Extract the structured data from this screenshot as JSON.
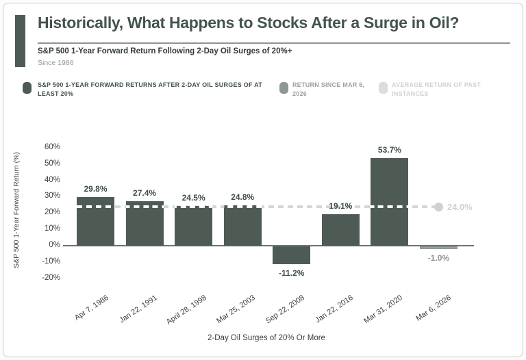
{
  "header": {
    "title": "Historically, What Happens to Stocks After a Surge in Oil?",
    "subtitle": "S&P 500 1-Year Forward Return Following 2-Day Oil Surges of 20%+",
    "since_label": "Since 1986"
  },
  "legend": {
    "items": [
      {
        "label": "S&P 500 1-YEAR FORWARD RETURNS AFTER 2-DAY OIL SURGES OF AT LEAST 20%",
        "swatch_color": "#4d5b54",
        "text_color": "#44544c"
      },
      {
        "label": "RETURN SINCE MAR 6, 2026",
        "swatch_color": "#8e9893",
        "text_color": "#9aa19d"
      },
      {
        "label": "AVERAGE RETURN OF PAST INSTANCES",
        "swatch_color": "#d9dedb",
        "text_color": "#cdd3d0"
      }
    ]
  },
  "chart_data": {
    "type": "bar",
    "title": "S&P 500 1-Year Forward Return Following 2-Day Oil Surges of 20%+",
    "categories": [
      "Apr 7, 1986",
      "Jan 22, 1991",
      "April 28, 1998",
      "Mar 25, 2003",
      "Sep 22, 2008",
      "Jan 22, 2016",
      "Mar 31, 2020",
      "Mar 6, 2026"
    ],
    "values": [
      29.8,
      27.4,
      24.5,
      24.8,
      -11.2,
      19.1,
      53.7,
      -1.0
    ],
    "bar_labels": [
      "29.8%",
      "27.4%",
      "24.5%",
      "24.8%",
      "-11.2%",
      "19.1%",
      "53.7%",
      "-1.0%"
    ],
    "bar_styles": [
      "past",
      "past",
      "past",
      "past",
      "past",
      "past",
      "past",
      "current"
    ],
    "average_line": {
      "value": 24.0,
      "label": "24.0%"
    },
    "ylabel": "S&P 500 1-Year Forward Return (%)",
    "xlabel": "2-Day Oil Surges of 20% Or More",
    "ylim": [
      -20,
      60
    ],
    "yticks": [
      60,
      50,
      40,
      30,
      20,
      10,
      0,
      -10,
      -20
    ],
    "ytick_labels": [
      "60%",
      "50%",
      "40%",
      "30%",
      "20%",
      "10%",
      "0%",
      "-10%",
      "-20%"
    ],
    "grid": false,
    "legend_position": "top",
    "colors": {
      "past_bar": "#4d5b54",
      "current_bar": "#9aa29d",
      "current_bar_border": "#8a948f",
      "label_past": "#3f4e47",
      "label_current": "#8f9793",
      "average_dash": "#d3d8d5",
      "average_label": "#ccd2cf",
      "axis_line": "#6e7471",
      "tick_text": "#3a3f3c"
    }
  }
}
